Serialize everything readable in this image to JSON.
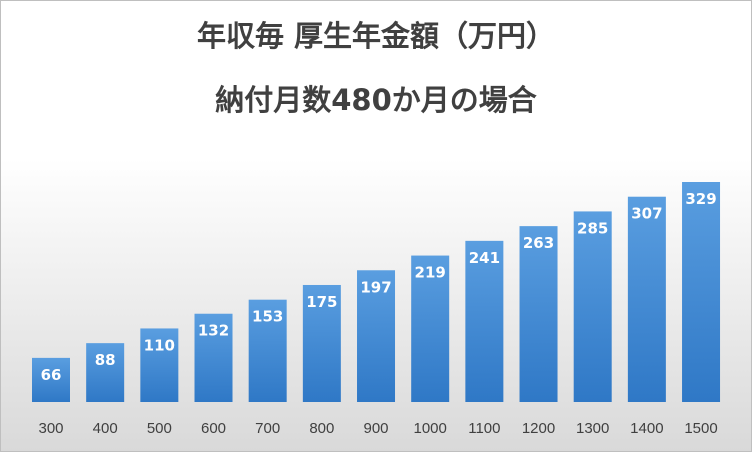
{
  "chart_data": {
    "type": "bar",
    "title": "年収毎 厚生年金額（万円）",
    "subtitle": "納付月数480か月の場合",
    "categories": [
      "300",
      "400",
      "500",
      "600",
      "700",
      "800",
      "900",
      "1000",
      "1100",
      "1200",
      "1300",
      "1400",
      "1500"
    ],
    "values": [
      66,
      88,
      110,
      132,
      153,
      175,
      197,
      219,
      241,
      263,
      285,
      307,
      329
    ],
    "color": "#3d85d0"
  }
}
